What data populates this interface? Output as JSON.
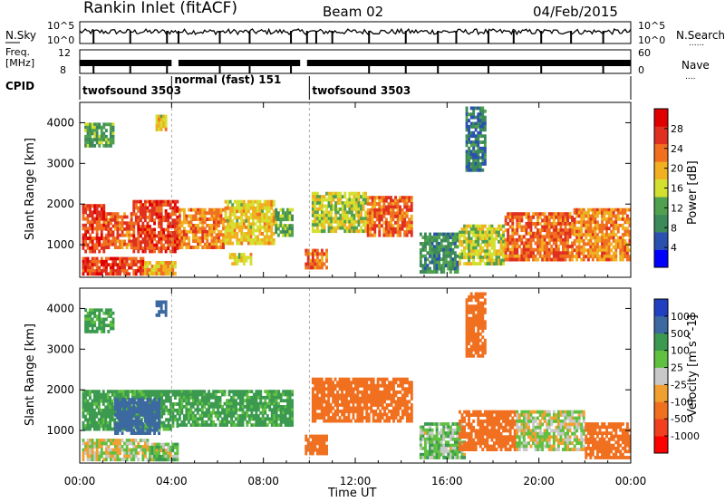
{
  "header": {
    "station": "Rankin Inlet (fitACF)",
    "beam": "Beam 02",
    "date": "04/Feb/2015"
  },
  "side_labels": {
    "nsky": "N.Sky",
    "freq_line1": "Freq.",
    "freq_line2": "[MHz]",
    "cpid": "CPID",
    "nsearch": "N.Search",
    "nave": "Nave",
    "dots": "......",
    "dots_short": "...."
  },
  "noise_axis": {
    "left_ticks": [
      "10^5",
      "10^0"
    ],
    "right_ticks": [
      "10^5",
      "10^0"
    ]
  },
  "freq_axis": {
    "left_ticks": [
      "12",
      "8"
    ],
    "right_ticks": [
      "60",
      "0"
    ]
  },
  "cpid_segments": [
    {
      "label": "twofsound 3503",
      "start_h": 0.0,
      "end_h": 4.0
    },
    {
      "label": "normal (fast) 151",
      "start_h": 4.0,
      "end_h": 10.0
    },
    {
      "label": "twofsound 3503",
      "start_h": 10.0,
      "end_h": 24.0
    }
  ],
  "colors": {
    "power_scale": [
      "#0000ff",
      "#2a50b0",
      "#3c8a5a",
      "#50a050",
      "#d4e030",
      "#f0b020",
      "#f07020",
      "#e03020",
      "#e00000"
    ],
    "velocity_scale": [
      "#ff0000",
      "#f04020",
      "#f07020",
      "#f0a030",
      "#c8c8c8",
      "#60c040",
      "#3c9a50",
      "#3c6aa0",
      "#2040c0"
    ]
  },
  "chart_data": [
    {
      "type": "heatmap",
      "name": "Power",
      "ylabel": "Slant Range [km]",
      "xlabel": "",
      "xlim": [
        0,
        24
      ],
      "ylim": [
        200,
        4500
      ],
      "y_ticks": [
        1000,
        2000,
        3000,
        4000
      ],
      "colorbar_label": "Power [dB]",
      "colorbar_ticks": [
        4,
        8,
        12,
        16,
        20,
        24,
        28
      ],
      "colorbar_range": [
        0,
        32
      ],
      "regions": [
        {
          "x": [
            0.1,
            1.1
          ],
          "y": [
            800,
            2000
          ],
          "value": 26
        },
        {
          "x": [
            1.1,
            2.3
          ],
          "y": [
            900,
            1800
          ],
          "value": 24
        },
        {
          "x": [
            2.3,
            4.3
          ],
          "y": [
            800,
            2100
          ],
          "value": 26
        },
        {
          "x": [
            4.3,
            6.3
          ],
          "y": [
            900,
            1900
          ],
          "value": 22
        },
        {
          "x": [
            6.3,
            8.5
          ],
          "y": [
            1000,
            2100
          ],
          "value": 18
        },
        {
          "x": [
            8.5,
            9.3
          ],
          "y": [
            1200,
            1900
          ],
          "value": 12
        },
        {
          "x": [
            0.1,
            2.8
          ],
          "y": [
            250,
            700
          ],
          "value": 26
        },
        {
          "x": [
            2.8,
            4.2
          ],
          "y": [
            250,
            600
          ],
          "value": 20
        },
        {
          "x": [
            6.5,
            7.5
          ],
          "y": [
            500,
            800
          ],
          "value": 18
        },
        {
          "x": [
            9.8,
            10.8
          ],
          "y": [
            400,
            900
          ],
          "value": 24
        },
        {
          "x": [
            10.1,
            12.5
          ],
          "y": [
            1300,
            2300
          ],
          "value": 16
        },
        {
          "x": [
            12.5,
            14.5
          ],
          "y": [
            1200,
            2200
          ],
          "value": 24
        },
        {
          "x": [
            14.8,
            16.5
          ],
          "y": [
            300,
            1300
          ],
          "value": 10
        },
        {
          "x": [
            16.5,
            18.5
          ],
          "y": [
            500,
            1500
          ],
          "value": 16
        },
        {
          "x": [
            18.5,
            21.5
          ],
          "y": [
            600,
            1800
          ],
          "value": 24
        },
        {
          "x": [
            21.5,
            24.0
          ],
          "y": [
            600,
            1900
          ],
          "value": 22
        },
        {
          "x": [
            16.8,
            17.7
          ],
          "y": [
            2800,
            4400
          ],
          "value": 8
        },
        {
          "x": [
            0.2,
            1.5
          ],
          "y": [
            3400,
            4000
          ],
          "value": 12
        },
        {
          "x": [
            3.3,
            3.8
          ],
          "y": [
            3800,
            4200
          ],
          "value": 18
        }
      ]
    },
    {
      "type": "heatmap",
      "name": "Velocity",
      "ylabel": "Slant Range [km]",
      "xlabel": "Time UT",
      "xlim": [
        0,
        24
      ],
      "ylim": [
        200,
        4500
      ],
      "x_ticks": [
        "00:00",
        "04:00",
        "08:00",
        "12:00",
        "16:00",
        "20:00",
        "00:00"
      ],
      "y_ticks": [
        1000,
        2000,
        3000,
        4000
      ],
      "colorbar_label": "Velocity [m s^-1]",
      "colorbar_ticks": [
        "1000",
        "500",
        "100",
        "25",
        "-25",
        "-100",
        "-500",
        "-1000"
      ],
      "regions": [
        {
          "x": [
            0.1,
            4.3
          ],
          "y": [
            1000,
            2000
          ],
          "value": 150
        },
        {
          "x": [
            1.5,
            3.5
          ],
          "y": [
            900,
            1800
          ],
          "value": 600
        },
        {
          "x": [
            4.3,
            9.3
          ],
          "y": [
            1100,
            2000
          ],
          "value": 150
        },
        {
          "x": [
            0.1,
            3.0
          ],
          "y": [
            250,
            800
          ],
          "value": 10
        },
        {
          "x": [
            3.0,
            4.3
          ],
          "y": [
            250,
            700
          ],
          "value": 60
        },
        {
          "x": [
            9.8,
            10.8
          ],
          "y": [
            400,
            900
          ],
          "value": -200
        },
        {
          "x": [
            10.1,
            14.5
          ],
          "y": [
            1200,
            2300
          ],
          "value": -300
        },
        {
          "x": [
            14.8,
            16.8
          ],
          "y": [
            300,
            1200
          ],
          "value": 60
        },
        {
          "x": [
            16.5,
            19.0
          ],
          "y": [
            500,
            1500
          ],
          "value": -300
        },
        {
          "x": [
            19.0,
            22.0
          ],
          "y": [
            500,
            1500
          ],
          "value": 10
        },
        {
          "x": [
            22.0,
            24.0
          ],
          "y": [
            300,
            1200
          ],
          "value": -300
        },
        {
          "x": [
            16.8,
            17.7
          ],
          "y": [
            2800,
            4400
          ],
          "value": -400
        },
        {
          "x": [
            0.2,
            1.5
          ],
          "y": [
            3400,
            4000
          ],
          "value": 150
        },
        {
          "x": [
            3.3,
            3.8
          ],
          "y": [
            3800,
            4200
          ],
          "value": 600
        }
      ]
    }
  ]
}
